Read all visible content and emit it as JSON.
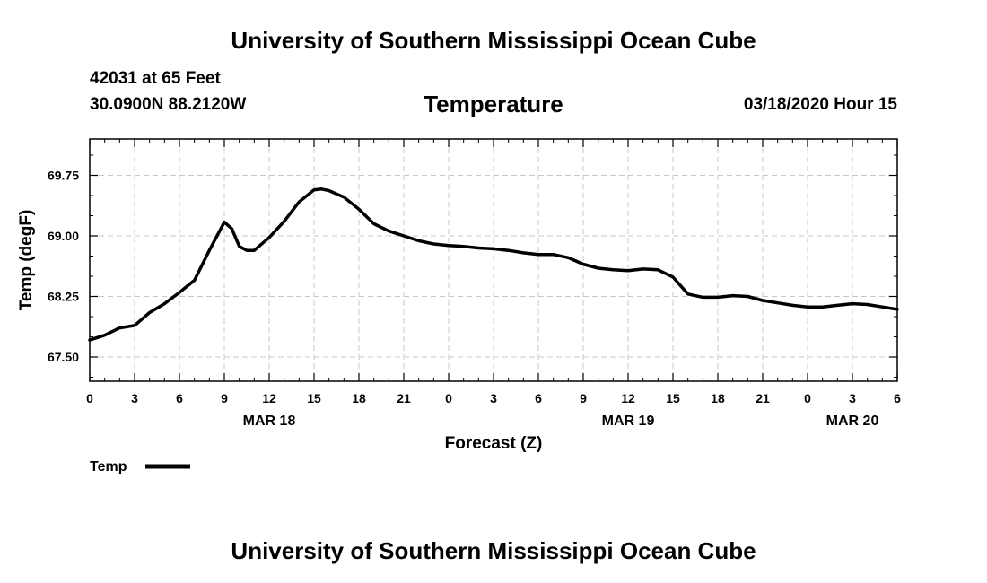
{
  "header": {
    "title": "University of Southern Mississippi Ocean Cube",
    "station": "42031 at 65 Feet",
    "coordinates": "30.0900N 88.2120W",
    "chart_title": "Temperature",
    "run_time": "03/18/2020 Hour 15"
  },
  "footer": {
    "title": "University of Southern Mississippi Ocean Cube"
  },
  "chart_data": {
    "type": "line",
    "title": "Temperature",
    "xlabel": "Forecast (Z)",
    "ylabel": "Temp (degF)",
    "xlim": [
      0,
      54
    ],
    "ylim": [
      67.2,
      70.2
    ],
    "x_ticks": [
      0,
      3,
      6,
      9,
      12,
      15,
      18,
      21,
      24,
      27,
      30,
      33,
      36,
      39,
      42,
      45,
      48,
      51,
      54
    ],
    "x_tick_labels": [
      "0",
      "3",
      "6",
      "9",
      "12",
      "15",
      "18",
      "21",
      "0",
      "3",
      "6",
      "9",
      "12",
      "15",
      "18",
      "21",
      "0",
      "3",
      "6"
    ],
    "date_labels": [
      {
        "x": 12,
        "label": "MAR 18"
      },
      {
        "x": 36,
        "label": "MAR 19"
      },
      {
        "x": 51,
        "label": "MAR 20"
      }
    ],
    "y_ticks": [
      67.5,
      68.25,
      69.0,
      69.75
    ],
    "y_tick_labels": [
      "67.50",
      "68.25",
      "69.00",
      "69.75"
    ],
    "grid": true,
    "legend": {
      "placement": "bottom-left",
      "entries": [
        {
          "name": "Temp",
          "color": "#000000"
        }
      ]
    },
    "series": [
      {
        "name": "Temp",
        "color": "#000000",
        "x": [
          0,
          1,
          2,
          3,
          4,
          5,
          6,
          7,
          8,
          9,
          9.5,
          10,
          10.5,
          11,
          12,
          13,
          14,
          15,
          15.5,
          16,
          17,
          18,
          19,
          20,
          21,
          22,
          23,
          24,
          25,
          26,
          27,
          28,
          29,
          30,
          31,
          32,
          33,
          34,
          35,
          36,
          37,
          38,
          39,
          40,
          41,
          42,
          43,
          44,
          45,
          46,
          47,
          48,
          49,
          50,
          51,
          52,
          53,
          54
        ],
        "values": [
          67.71,
          67.77,
          67.86,
          67.89,
          68.05,
          68.16,
          68.3,
          68.45,
          68.82,
          69.17,
          69.09,
          68.87,
          68.82,
          68.82,
          68.98,
          69.18,
          69.42,
          69.57,
          69.58,
          69.56,
          69.48,
          69.33,
          69.15,
          69.06,
          69.0,
          68.94,
          68.9,
          68.88,
          68.87,
          68.85,
          68.84,
          68.82,
          68.79,
          68.77,
          68.77,
          68.73,
          68.65,
          68.6,
          68.58,
          68.57,
          68.59,
          68.58,
          68.49,
          68.28,
          68.24,
          68.24,
          68.26,
          68.25,
          68.2,
          68.17,
          68.14,
          68.12,
          68.12,
          68.14,
          68.16,
          68.15,
          68.12,
          68.09
        ]
      }
    ]
  }
}
